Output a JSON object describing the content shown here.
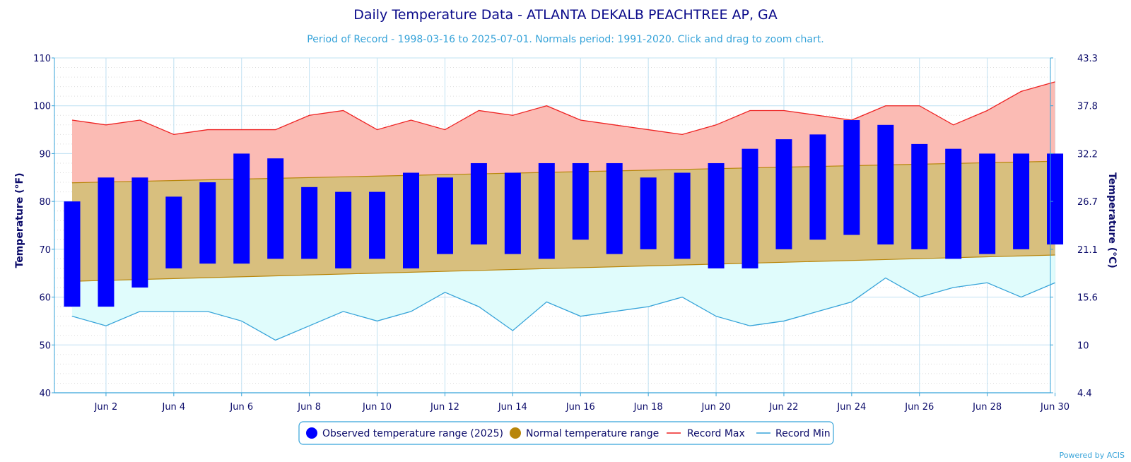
{
  "chart_data": {
    "type": "bar",
    "title": "Daily Temperature Data - ATLANTA DEKALB PEACHTREE AP, GA",
    "subtitle": "Period of Record - 1998-03-16 to 2025-07-01. Normals period: 1991-2020. Click and drag to zoom chart.",
    "ylabel": "Temperature (°F)",
    "ylabel_right": "Temperature (°C)",
    "ylim": [
      40,
      110
    ],
    "yticks": [
      40,
      50,
      60,
      70,
      80,
      90,
      100,
      110
    ],
    "yticks_right": [
      "4.4",
      "10",
      "15.6",
      "21.1",
      "26.7",
      "32.2",
      "37.8",
      "43.3"
    ],
    "x_days": [
      1,
      30
    ],
    "x_tick_days": [
      2,
      4,
      6,
      8,
      10,
      12,
      14,
      16,
      18,
      20,
      22,
      24,
      26,
      28,
      30
    ],
    "x_tick_labels": [
      "Jun 2",
      "Jun 4",
      "Jun 6",
      "Jun 8",
      "Jun 10",
      "Jun 12",
      "Jun 14",
      "Jun 16",
      "Jun 18",
      "Jun 20",
      "Jun 22",
      "Jun 24",
      "Jun 26",
      "Jun 28",
      "Jun 30"
    ],
    "grid": true,
    "legend_position": "bottom",
    "series": [
      {
        "name": "Observed temperature range (2025)",
        "kind": "range-bar",
        "color": "#0000ff",
        "days": [
          1,
          2,
          3,
          4,
          5,
          6,
          7,
          8,
          9,
          10,
          11,
          12,
          13,
          14,
          15,
          16,
          17,
          18,
          19,
          20,
          21,
          22,
          23,
          24,
          25,
          26,
          27,
          28,
          29,
          30
        ],
        "low": [
          58,
          58,
          62,
          66,
          67,
          67,
          68,
          68,
          66,
          68,
          66,
          69,
          71,
          69,
          68,
          72,
          69,
          70,
          68,
          66,
          66,
          70,
          72,
          73,
          71,
          70,
          68,
          69,
          70,
          71
        ],
        "high": [
          80,
          85,
          85,
          81,
          84,
          90,
          89,
          83,
          82,
          82,
          86,
          85,
          88,
          86,
          88,
          88,
          88,
          85,
          86,
          88,
          91,
          93,
          94,
          97,
          96,
          92,
          91,
          90,
          90,
          90
        ]
      },
      {
        "name": "Normal temperature range",
        "kind": "band",
        "color": "#b8860b",
        "days": [
          1,
          30
        ],
        "low": [
          63.3,
          68.8
        ],
        "high": [
          83.9,
          88.4
        ]
      },
      {
        "name": "Record Max",
        "kind": "line",
        "color": "#ee2222",
        "days": [
          1,
          2,
          3,
          4,
          5,
          6,
          7,
          8,
          9,
          10,
          11,
          12,
          13,
          14,
          15,
          16,
          17,
          18,
          19,
          20,
          21,
          22,
          23,
          24,
          25,
          26,
          27,
          28,
          29,
          30
        ],
        "values": [
          97,
          96,
          97,
          94,
          95,
          95,
          95,
          98,
          99,
          95,
          97,
          95,
          99,
          98,
          100,
          97,
          96,
          95,
          94,
          96,
          99,
          99,
          98,
          97,
          100,
          100,
          96,
          99,
          103,
          105
        ]
      },
      {
        "name": "Record Min",
        "kind": "line",
        "color": "#36a3d9",
        "days": [
          1,
          2,
          3,
          4,
          5,
          6,
          7,
          8,
          9,
          10,
          11,
          12,
          13,
          14,
          15,
          16,
          17,
          18,
          19,
          20,
          21,
          22,
          23,
          24,
          25,
          26,
          27,
          28,
          29,
          30
        ],
        "values": [
          56,
          54,
          57,
          57,
          57,
          55,
          51,
          54,
          57,
          55,
          57,
          61,
          58,
          53,
          59,
          56,
          57,
          58,
          60,
          56,
          54,
          55,
          57,
          59,
          64,
          60,
          62,
          63,
          60,
          63
        ]
      }
    ],
    "credit": "Powered by ACIS"
  },
  "colors": {
    "record_max_fill": "#fbbbb4",
    "normal_fill": "#d8bf7e",
    "record_min_fill": "#e0fcfc",
    "grid": "#bfe0f2",
    "axis": "#36a3d9",
    "legend_border": "#36a3d9"
  }
}
